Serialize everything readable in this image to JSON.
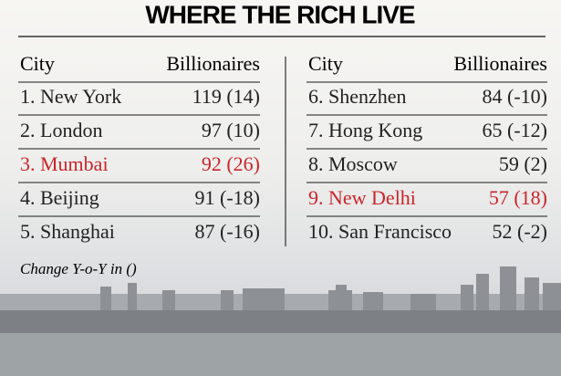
{
  "title": "WHERE THE RICH LIVE",
  "highlight_color": "#c8262c",
  "tables": [
    {
      "header": [
        "City",
        "Billionaires"
      ],
      "rows": [
        {
          "city": "1. New York",
          "billionaires": "119 (14)",
          "highlight": false
        },
        {
          "city": "2.  London",
          "billionaires": "97 (10)",
          "highlight": false
        },
        {
          "city": "3. Mumbai",
          "billionaires": "92 (26)",
          "highlight": true
        },
        {
          "city": "4. Beijing",
          "billionaires": "91 (-18)",
          "highlight": false
        },
        {
          "city": "5. Shanghai",
          "billionaires": "87 (-16)",
          "highlight": false
        }
      ]
    },
    {
      "header": [
        "City",
        "Billionaires"
      ],
      "rows": [
        {
          "city": "6. Shenzhen",
          "billionaires": "84 (-10)",
          "highlight": false
        },
        {
          "city": "7. Hong Kong",
          "billionaires": "65 (-12)",
          "highlight": false
        },
        {
          "city": "8. Moscow",
          "billionaires": "59 (2)",
          "highlight": false
        },
        {
          "city": "9. New Delhi",
          "billionaires": "57 (18)",
          "highlight": true
        },
        {
          "city": "10. San Francisco",
          "billionaires": "52 (-2)",
          "highlight": false
        }
      ]
    }
  ],
  "footnote": "Change Y-o-Y in ()"
}
